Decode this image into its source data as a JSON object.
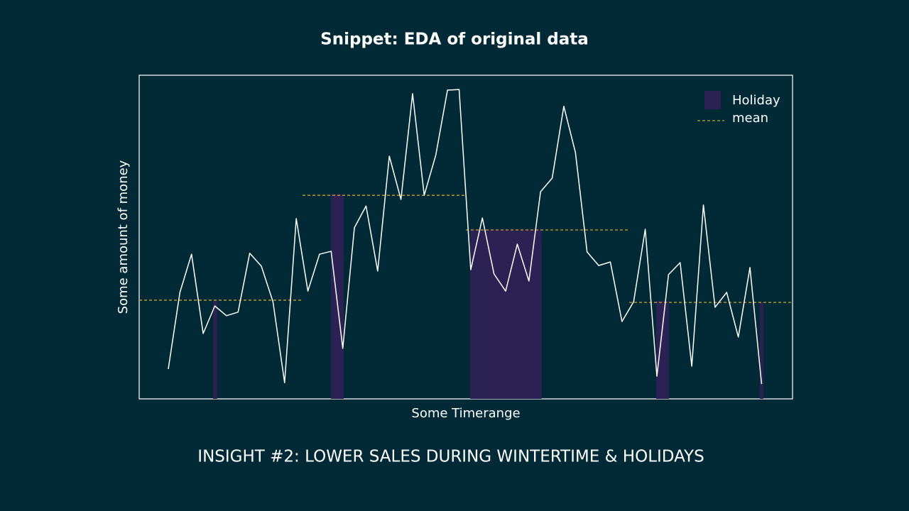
{
  "title": "Snippet: EDA of original data",
  "caption": "INSIGHT #2: LOWER SALES DURING WINTERTIME & HOLIDAYS",
  "chart_data": {
    "type": "line",
    "x_label": "Some Timerange",
    "y_label": "Some amount of money",
    "xlim": [
      -2.5,
      53.66
    ],
    "ylim": [
      0,
      100
    ],
    "legend": "upper right",
    "x": [
      0,
      1,
      2,
      3,
      4,
      5,
      6,
      7,
      8,
      9,
      10,
      11,
      12,
      13,
      14,
      15,
      16,
      17,
      18,
      19,
      20,
      21,
      22,
      23,
      24,
      25,
      26,
      27,
      28,
      29,
      30,
      31,
      32,
      33,
      34,
      35,
      36,
      37,
      38,
      39,
      40,
      41,
      42,
      43,
      44,
      45,
      46,
      47,
      48,
      49,
      50,
      51
    ],
    "series": [
      {
        "color": "#ffffff",
        "values": [
          9.2,
          32.9,
          44.7,
          20.2,
          28.7,
          25.7,
          26.8,
          45.0,
          41.0,
          30.0,
          5.0,
          55.7,
          33.3,
          44.7,
          45.6,
          15.6,
          52.9,
          59.6,
          39.5,
          75.0,
          61.6,
          94.3,
          62.9,
          75.4,
          95.4,
          95.6,
          39.9,
          55.9,
          38.6,
          33.3,
          47.8,
          36.4,
          64.0,
          68.2,
          90.4,
          76.1,
          45.4,
          41.2,
          42.3,
          23.9,
          30.0,
          52.4,
          7.0,
          38.4,
          42.1,
          10.1,
          59.9,
          28.3,
          32.9,
          19.1,
          40.6,
          4.6
        ]
      }
    ],
    "holidays": {
      "name": "Holiday",
      "color": "#2b2152",
      "spans": [
        {
          "x": [
            3.85,
            4.21
          ],
          "value": 30.3
        },
        {
          "x": [
            13.98,
            15.08
          ],
          "value": 63.2
        },
        {
          "x": [
            25.95,
            32.1
          ],
          "value": 52.4
        },
        {
          "x": [
            41.94,
            43.04
          ],
          "value": 30.3
        },
        {
          "x": [
            50.85,
            51.16
          ],
          "value": 29.8
        }
      ]
    },
    "means": {
      "name": "mean",
      "color": "#c9a227",
      "segments": [
        {
          "x": [
            -2.5,
            11.48
          ],
          "value": 30.5
        },
        {
          "x": [
            11.54,
            25.46
          ],
          "value": 62.9
        },
        {
          "x": [
            25.58,
            39.56
          ],
          "value": 52.2
        },
        {
          "x": [
            39.62,
            53.66
          ],
          "value": 29.8
        }
      ]
    }
  }
}
